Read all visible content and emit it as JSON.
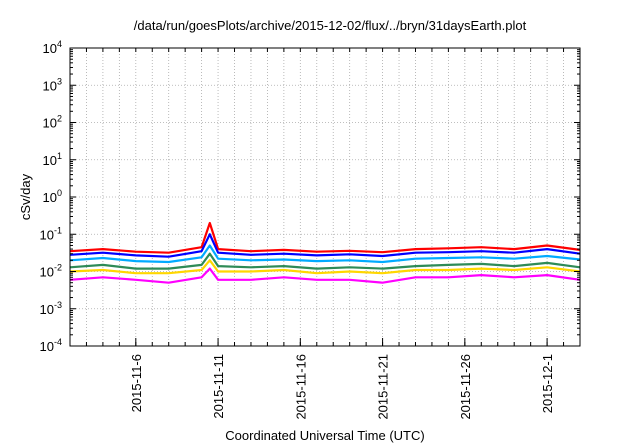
{
  "chart_data": {
    "type": "line",
    "title": "/data/run/goesPlots/archive/2015-12-02/flux/../bryn/31daysEarth.plot",
    "xlabel": "Coordinated Universal Time (UTC)",
    "ylabel": "cSv/day",
    "y_scale": "log",
    "ylim": [
      0.0001,
      10000
    ],
    "xlim": [
      "2015-11-02",
      "2015-12-03"
    ],
    "grid": true,
    "legend": "none",
    "y_ticks": [
      {
        "mant": "10",
        "exp": "-4"
      },
      {
        "mant": "10",
        "exp": "-3"
      },
      {
        "mant": "10",
        "exp": "-2"
      },
      {
        "mant": "10",
        "exp": "-1"
      },
      {
        "mant": "10",
        "exp": "0"
      },
      {
        "mant": "10",
        "exp": "1"
      },
      {
        "mant": "10",
        "exp": "2"
      },
      {
        "mant": "10",
        "exp": "3"
      },
      {
        "mant": "10",
        "exp": "4"
      }
    ],
    "x_ticks": [
      "2015-11-6",
      "2015-11-11",
      "2015-11-16",
      "2015-11-21",
      "2015-11-26",
      "2015-12-1"
    ],
    "x_tick_dates": [
      "2015-11-06",
      "2015-11-11",
      "2015-11-16",
      "2015-11-21",
      "2015-11-26",
      "2015-12-01"
    ],
    "series": [
      {
        "color": "#ff0000",
        "x": [
          "2015-11-02",
          "2015-11-04",
          "2015-11-06",
          "2015-11-08",
          "2015-11-10",
          "2015-11-10T12:00",
          "2015-11-11",
          "2015-11-13",
          "2015-11-15",
          "2015-11-17",
          "2015-11-19",
          "2015-11-21",
          "2015-11-23",
          "2015-11-25",
          "2015-11-27",
          "2015-11-29",
          "2015-12-01",
          "2015-12-03"
        ],
        "values": [
          0.035,
          0.04,
          0.034,
          0.032,
          0.045,
          0.2,
          0.04,
          0.035,
          0.038,
          0.034,
          0.036,
          0.033,
          0.04,
          0.042,
          0.045,
          0.04,
          0.05,
          0.038
        ]
      },
      {
        "color": "#0000ff",
        "x": [
          "2015-11-02",
          "2015-11-04",
          "2015-11-06",
          "2015-11-08",
          "2015-11-10",
          "2015-11-10T12:00",
          "2015-11-11",
          "2015-11-13",
          "2015-11-15",
          "2015-11-17",
          "2015-11-19",
          "2015-11-21",
          "2015-11-23",
          "2015-11-25",
          "2015-11-27",
          "2015-11-29",
          "2015-12-01",
          "2015-12-03"
        ],
        "values": [
          0.028,
          0.032,
          0.027,
          0.025,
          0.035,
          0.1,
          0.032,
          0.028,
          0.03,
          0.027,
          0.029,
          0.026,
          0.032,
          0.033,
          0.035,
          0.032,
          0.04,
          0.03
        ]
      },
      {
        "color": "#00aaff",
        "x": [
          "2015-11-02",
          "2015-11-04",
          "2015-11-06",
          "2015-11-08",
          "2015-11-10",
          "2015-11-10T12:00",
          "2015-11-11",
          "2015-11-13",
          "2015-11-15",
          "2015-11-17",
          "2015-11-19",
          "2015-11-21",
          "2015-11-23",
          "2015-11-25",
          "2015-11-27",
          "2015-11-29",
          "2015-12-01",
          "2015-12-03"
        ],
        "values": [
          0.02,
          0.023,
          0.019,
          0.018,
          0.024,
          0.05,
          0.022,
          0.02,
          0.021,
          0.019,
          0.02,
          0.018,
          0.022,
          0.023,
          0.024,
          0.022,
          0.026,
          0.021
        ]
      },
      {
        "color": "#2e8b57",
        "x": [
          "2015-11-02",
          "2015-11-04",
          "2015-11-06",
          "2015-11-08",
          "2015-11-10",
          "2015-11-10T12:00",
          "2015-11-11",
          "2015-11-13",
          "2015-11-15",
          "2015-11-17",
          "2015-11-19",
          "2015-11-21",
          "2015-11-23",
          "2015-11-25",
          "2015-11-27",
          "2015-11-29",
          "2015-12-01",
          "2015-12-03"
        ],
        "values": [
          0.013,
          0.015,
          0.012,
          0.012,
          0.015,
          0.03,
          0.014,
          0.013,
          0.014,
          0.012,
          0.013,
          0.012,
          0.014,
          0.015,
          0.016,
          0.014,
          0.017,
          0.013
        ]
      },
      {
        "color": "#ffd700",
        "x": [
          "2015-11-02",
          "2015-11-04",
          "2015-11-06",
          "2015-11-08",
          "2015-11-10",
          "2015-11-10T12:00",
          "2015-11-11",
          "2015-11-13",
          "2015-11-15",
          "2015-11-17",
          "2015-11-19",
          "2015-11-21",
          "2015-11-23",
          "2015-11-25",
          "2015-11-27",
          "2015-11-29",
          "2015-12-01",
          "2015-12-03"
        ],
        "values": [
          0.01,
          0.011,
          0.009,
          0.009,
          0.011,
          0.02,
          0.01,
          0.01,
          0.011,
          0.009,
          0.01,
          0.009,
          0.011,
          0.011,
          0.012,
          0.011,
          0.013,
          0.01
        ]
      },
      {
        "color": "#ff00ff",
        "x": [
          "2015-11-02",
          "2015-11-04",
          "2015-11-06",
          "2015-11-08",
          "2015-11-10",
          "2015-11-10T12:00",
          "2015-11-11",
          "2015-11-13",
          "2015-11-15",
          "2015-11-17",
          "2015-11-19",
          "2015-11-21",
          "2015-11-23",
          "2015-11-25",
          "2015-11-27",
          "2015-11-29",
          "2015-12-01",
          "2015-12-03"
        ],
        "values": [
          0.006,
          0.007,
          0.006,
          0.005,
          0.007,
          0.012,
          0.006,
          0.006,
          0.007,
          0.006,
          0.006,
          0.005,
          0.007,
          0.007,
          0.008,
          0.007,
          0.008,
          0.006
        ]
      }
    ]
  }
}
